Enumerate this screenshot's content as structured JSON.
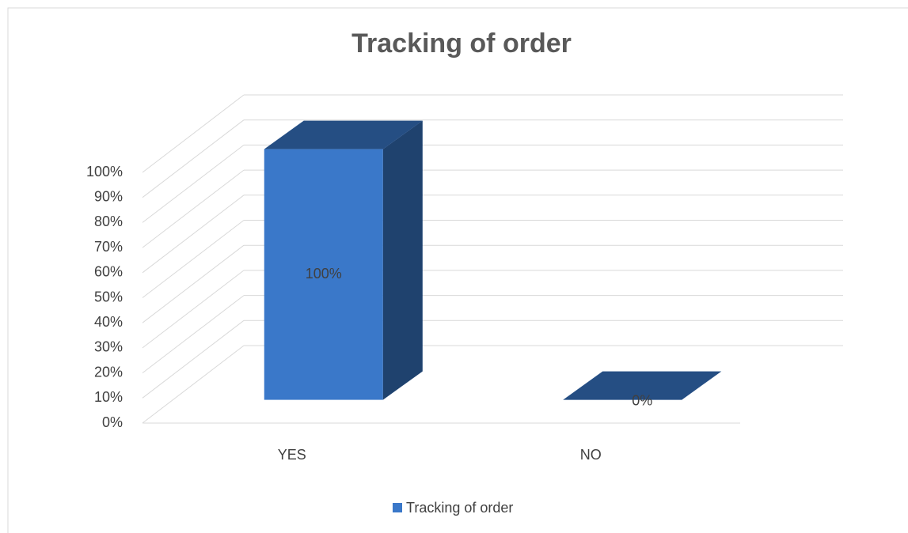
{
  "chart_data": {
    "type": "bar3d",
    "title": "Tracking of order",
    "categories": [
      "YES",
      "NO"
    ],
    "series": [
      {
        "name": "Tracking of order",
        "color": "#3a78c9",
        "values": [
          100,
          0
        ],
        "value_labels": [
          "100%",
          "0%"
        ]
      }
    ],
    "ylim": [
      0,
      100
    ],
    "yticks": [
      {
        "value": 0,
        "label": "0%"
      },
      {
        "value": 10,
        "label": "10%"
      },
      {
        "value": 20,
        "label": "20%"
      },
      {
        "value": 30,
        "label": "30%"
      },
      {
        "value": 40,
        "label": "40%"
      },
      {
        "value": 50,
        "label": "50%"
      },
      {
        "value": 60,
        "label": "60%"
      },
      {
        "value": 70,
        "label": "70%"
      },
      {
        "value": 80,
        "label": "80%"
      },
      {
        "value": 90,
        "label": "90%"
      },
      {
        "value": 100,
        "label": "100%"
      }
    ],
    "grid": true,
    "legend": "bottom"
  }
}
